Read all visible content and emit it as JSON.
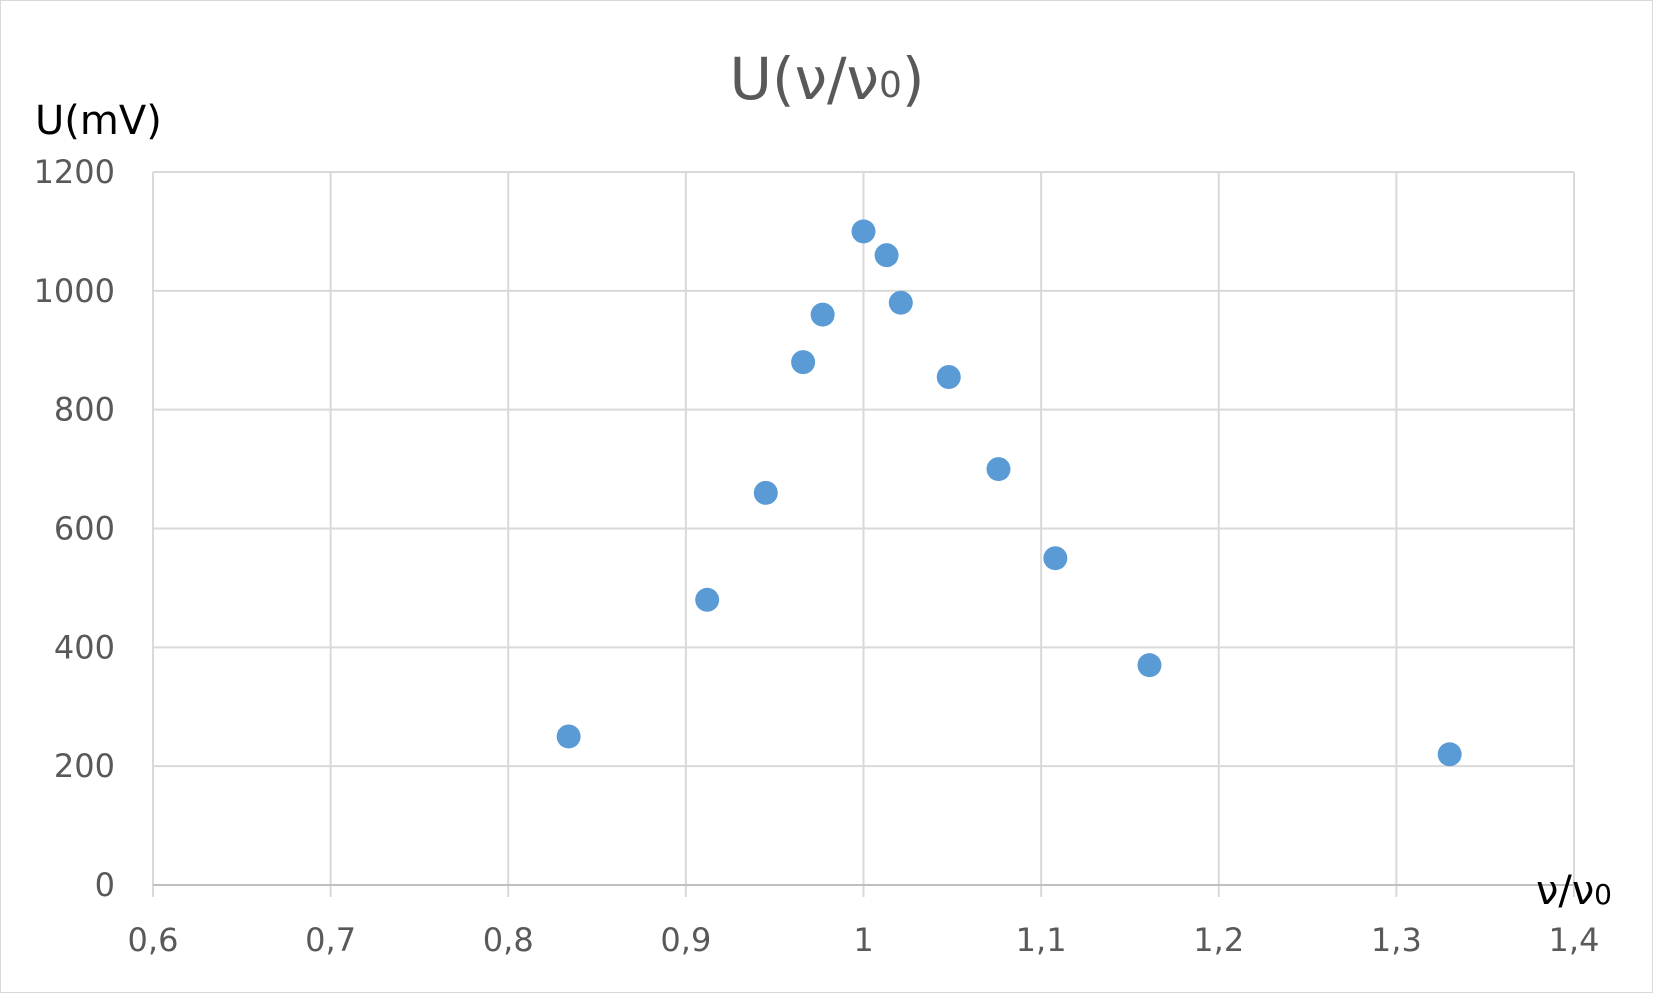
{
  "chart_data": {
    "type": "scatter",
    "title": "U(ν/ν0)",
    "title_parts": {
      "main": "U(ν/ν",
      "sub": "0",
      "close": ")"
    },
    "xlabel": "ν/ν0",
    "xlabel_parts": {
      "main": "ν/ν",
      "sub": "0"
    },
    "ylabel": "U(mV)",
    "xlim": [
      0.6,
      1.4
    ],
    "ylim": [
      0,
      1200
    ],
    "x_ticks": [
      0.6,
      0.7,
      0.8,
      0.9,
      1.0,
      1.1,
      1.2,
      1.3,
      1.4
    ],
    "x_tick_labels": [
      "0,6",
      "0,7",
      "0,8",
      "0,9",
      "1",
      "1,1",
      "1,2",
      "1,3",
      "1,4"
    ],
    "y_ticks": [
      0,
      200,
      400,
      600,
      800,
      1000,
      1200
    ],
    "y_tick_labels": [
      "0",
      "200",
      "400",
      "600",
      "800",
      "1000",
      "1200"
    ],
    "grid": true,
    "legend": "none",
    "marker_color": "#5b9bd5",
    "series": [
      {
        "points": [
          {
            "x": 0.834,
            "y": 250
          },
          {
            "x": 0.912,
            "y": 480
          },
          {
            "x": 0.945,
            "y": 660
          },
          {
            "x": 0.966,
            "y": 880
          },
          {
            "x": 0.977,
            "y": 960
          },
          {
            "x": 1.0,
            "y": 1100
          },
          {
            "x": 1.013,
            "y": 1060
          },
          {
            "x": 1.021,
            "y": 980
          },
          {
            "x": 1.048,
            "y": 855
          },
          {
            "x": 1.076,
            "y": 700
          },
          {
            "x": 1.108,
            "y": 550
          },
          {
            "x": 1.161,
            "y": 370
          },
          {
            "x": 1.33,
            "y": 220
          }
        ]
      }
    ]
  }
}
